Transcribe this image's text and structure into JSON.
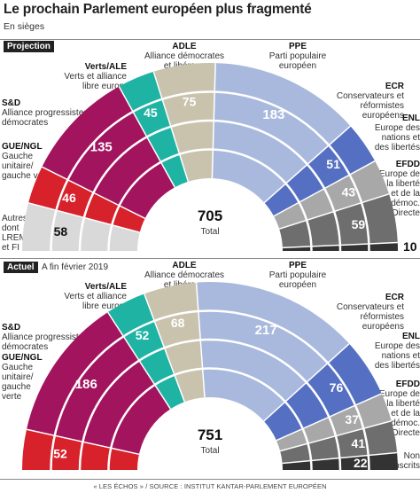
{
  "title": "Le prochain Parlement européen plus fragmenté",
  "subtitle": "En sièges",
  "source": "« LES ÉCHOS » / SOURCE : INSTITUT KANTAR-PARLEMENT EUROPÉEN",
  "colors": {
    "other": "#d9d9d9",
    "gue": "#d7212b",
    "sd": "#a3145e",
    "verts": "#1fb3a3",
    "adle": "#c9c3ae",
    "ppe": "#a9b9dd",
    "ecr": "#5570c2",
    "enl": "#a8a8a8",
    "efdd": "#6e6e6e",
    "ni": "#333333"
  },
  "chart_data": [
    {
      "type": "hemicycle",
      "section_label": "Projection",
      "section_date": "",
      "total_value": "705",
      "total_label": "Total",
      "series": [
        {
          "key": "other",
          "abbr": "",
          "name": "Autres, dont LREM et FI",
          "value": 58
        },
        {
          "key": "gue",
          "abbr": "GUE/NGL",
          "name": "Gauche unitaire/ gauche verte",
          "value": 46
        },
        {
          "key": "sd",
          "abbr": "S&D",
          "name": "Alliance progressistes et démocrates",
          "value": 135
        },
        {
          "key": "verts",
          "abbr": "Verts/ALE",
          "name": "Verts et alliance libre europ.",
          "value": 45
        },
        {
          "key": "adle",
          "abbr": "ADLE",
          "name": "Alliance démocrates et libéraux",
          "value": 75
        },
        {
          "key": "ppe",
          "abbr": "PPE",
          "name": "Parti populaire européen",
          "value": 183
        },
        {
          "key": "ecr",
          "abbr": "ECR",
          "name": "Conservateurs et réformistes européens",
          "value": 51
        },
        {
          "key": "enl",
          "abbr": "ENL",
          "name": "Europe des nations et des libertés",
          "value": 43
        },
        {
          "key": "efdd",
          "abbr": "EFDD",
          "name": "Europe de la liberté et de la démoc. Directe",
          "value": 59
        },
        {
          "key": "ni",
          "abbr": "",
          "name": "",
          "value": 10
        }
      ]
    },
    {
      "type": "hemicycle",
      "section_label": "Actuel",
      "section_date": "A fin février 2019",
      "total_value": "751",
      "total_label": "Total",
      "series": [
        {
          "key": "gue",
          "abbr": "GUE/NGL",
          "name": "Gauche unitaire/ gauche verte",
          "value": 52
        },
        {
          "key": "sd",
          "abbr": "S&D",
          "name": "Alliance progressistes et démocrates",
          "value": 186
        },
        {
          "key": "verts",
          "abbr": "Verts/ALE",
          "name": "Verts et alliance libre europ.",
          "value": 52
        },
        {
          "key": "adle",
          "abbr": "ADLE",
          "name": "Alliance démocrates et libéraux",
          "value": 68
        },
        {
          "key": "ppe",
          "abbr": "PPE",
          "name": "Parti populaire européen",
          "value": 217
        },
        {
          "key": "ecr",
          "abbr": "ECR",
          "name": "Conservateurs et réformistes européens",
          "value": 76
        },
        {
          "key": "enl",
          "abbr": "ENL",
          "name": "Europe des nations et des libertés",
          "value": 37
        },
        {
          "key": "efdd",
          "abbr": "EFDD",
          "name": "Europe de la liberté et de la démoc. Directe",
          "value": 41
        },
        {
          "key": "ni",
          "abbr": "",
          "name": "Non inscrits",
          "value": 22
        }
      ]
    }
  ]
}
